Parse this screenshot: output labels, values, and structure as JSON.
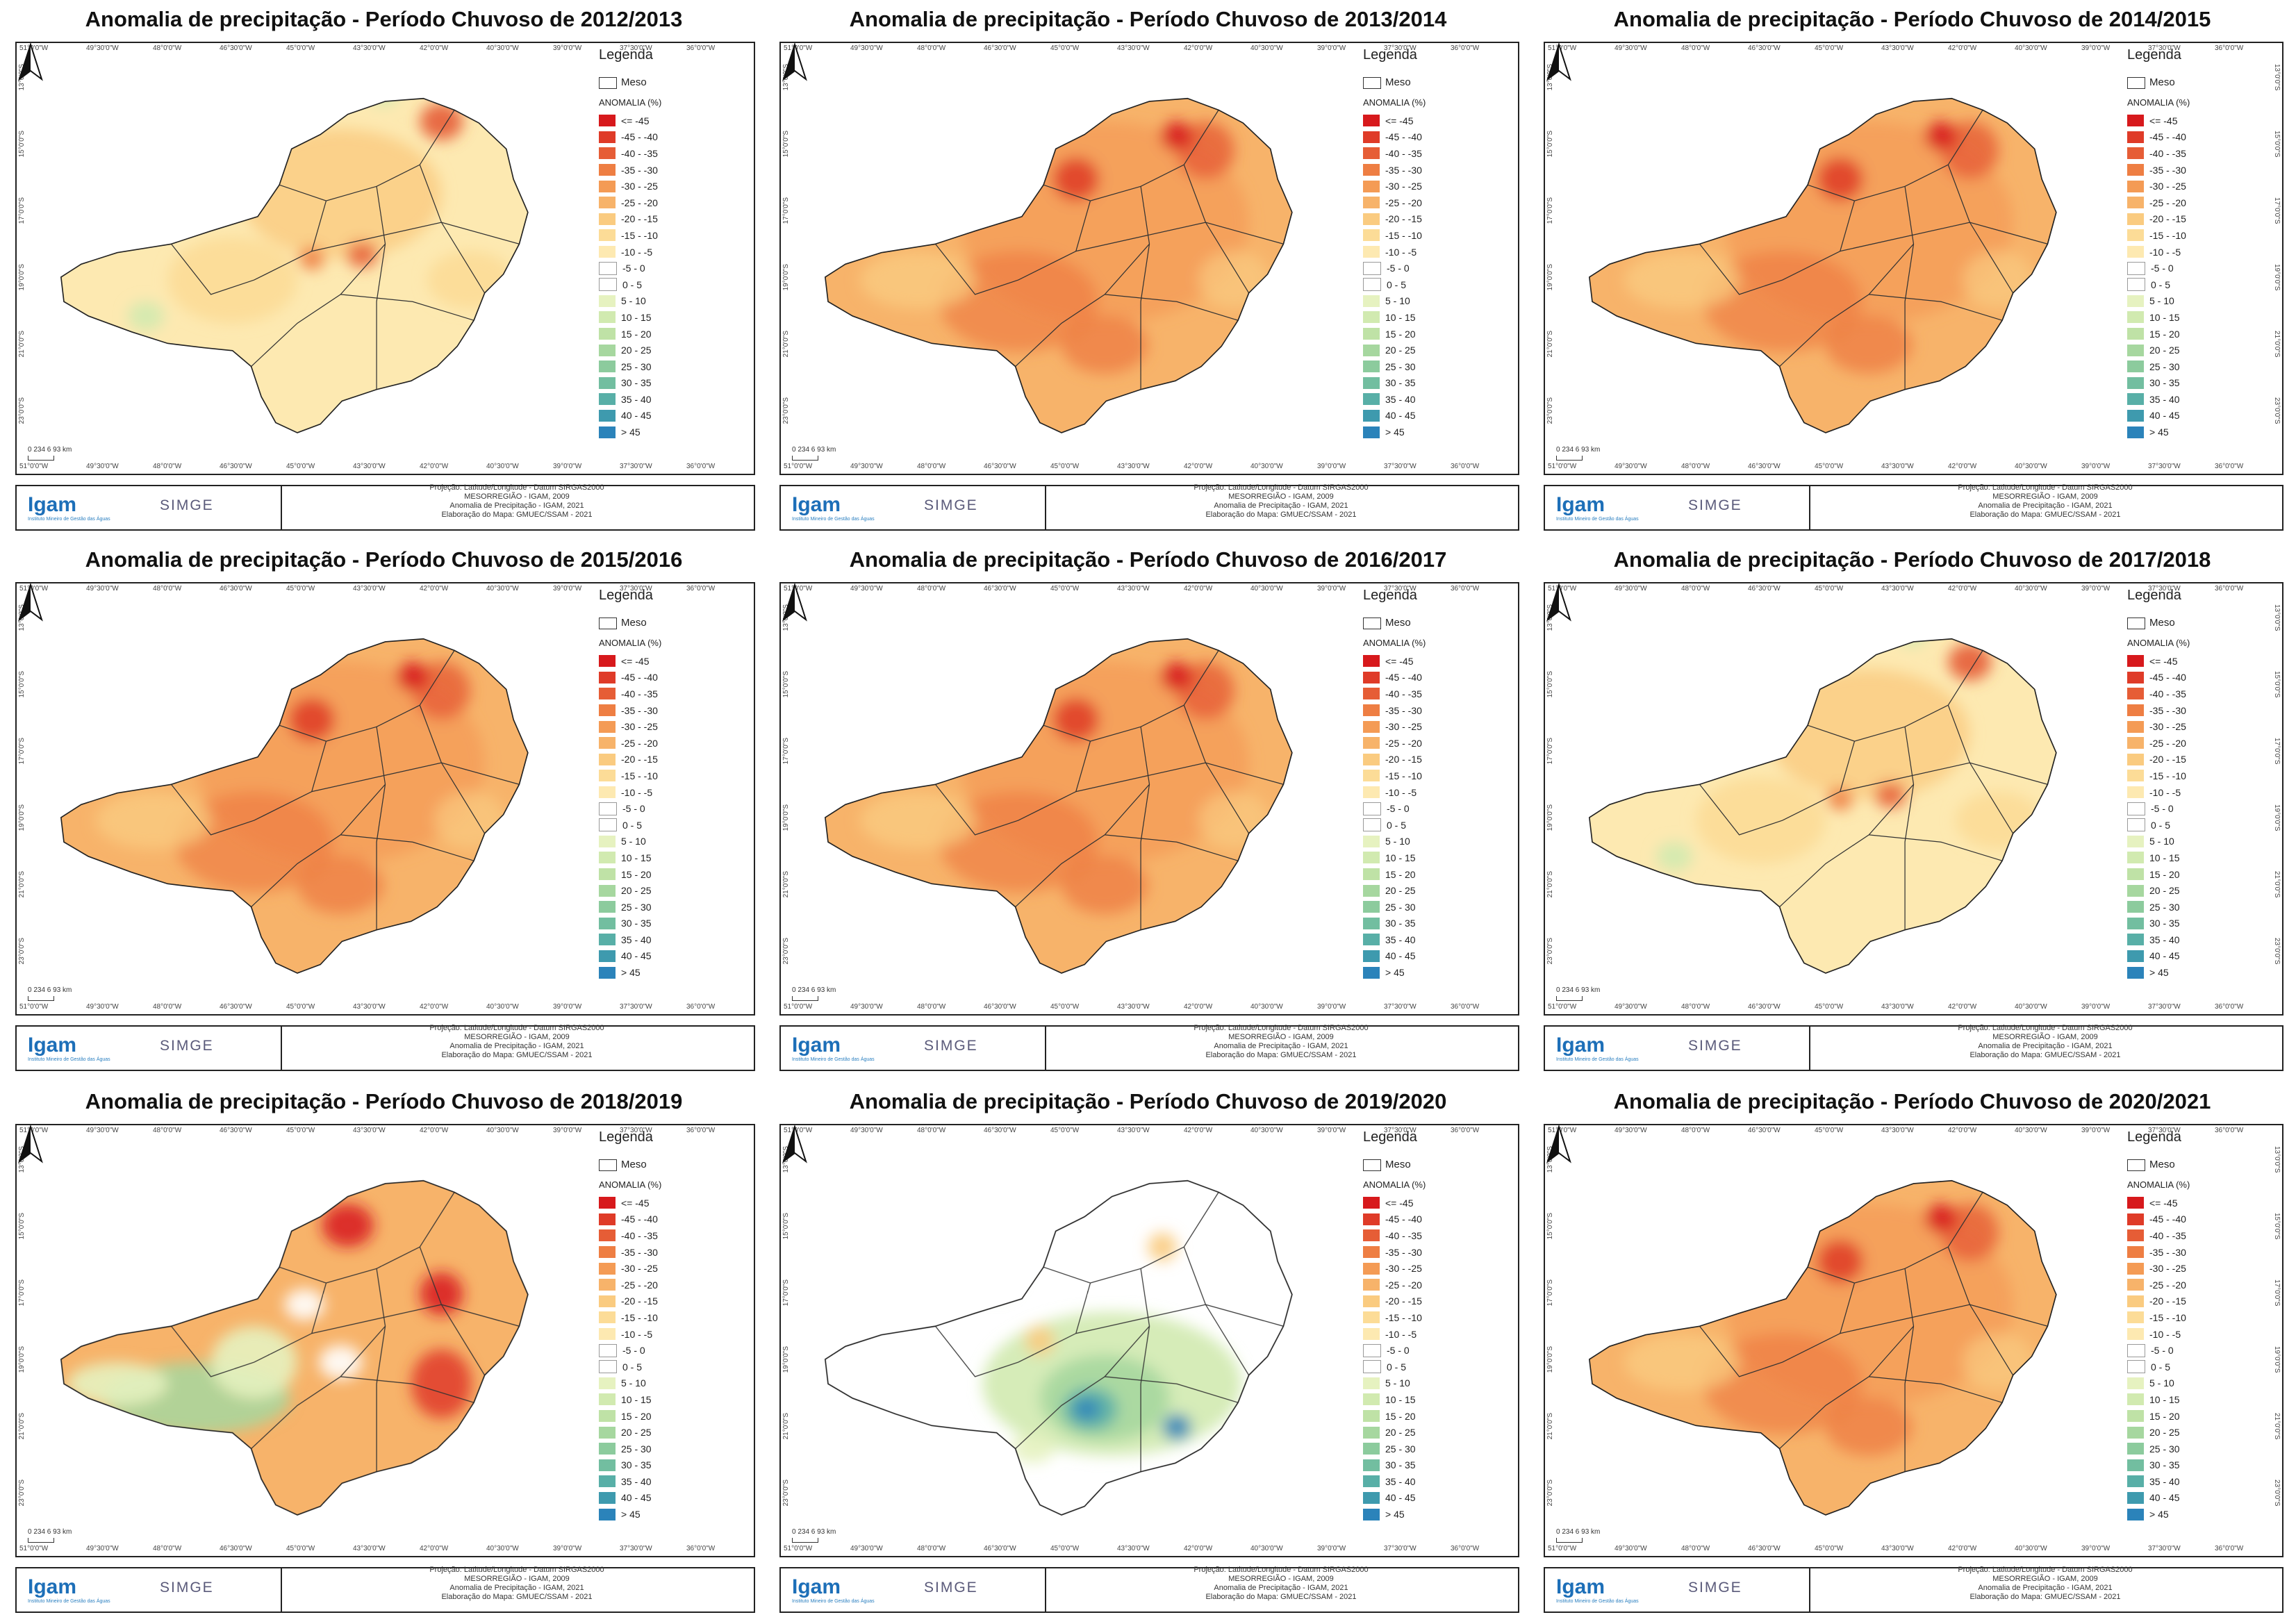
{
  "panels": [
    {
      "title": "Anomalia de precipitação - Período Chuvoso de 2012/2013",
      "theme": "light"
    },
    {
      "title": "Anomalia de precipitação - Período Chuvoso de 2013/2014",
      "theme": "orange"
    },
    {
      "title": "Anomalia de precipitação - Período Chuvoso de 2014/2015",
      "theme": "orange"
    },
    {
      "title": "Anomalia de precipitação - Período Chuvoso de 2015/2016",
      "theme": "orange"
    },
    {
      "title": "Anomalia de precipitação - Período Chuvoso de 2016/2017",
      "theme": "orange"
    },
    {
      "title": "Anomalia de precipitação - Período Chuvoso de 2017/2018",
      "theme": "light"
    },
    {
      "title": "Anomalia de precipitação - Período Chuvoso de 2018/2019",
      "theme": "mixed"
    },
    {
      "title": "Anomalia de precipitação - Período Chuvoso de 2019/2020",
      "theme": "green"
    },
    {
      "title": "Anomalia de precipitação - Período Chuvoso de 2020/2021",
      "theme": "orange"
    }
  ],
  "legend": {
    "title": "Legenda",
    "meso_label": "Meso",
    "anomaly_label": "ANOMALIA (%)",
    "classes": [
      {
        "label": "<= -45",
        "color": "#d7191c"
      },
      {
        "label": "-45 - -40",
        "color": "#df3b28"
      },
      {
        "label": "-40 - -35",
        "color": "#e65d36"
      },
      {
        "label": "-35 - -30",
        "color": "#ee7e43"
      },
      {
        "label": "-30 - -25",
        "color": "#f49b55"
      },
      {
        "label": "-25 - -20",
        "color": "#f7b36a"
      },
      {
        "label": "-20 - -15",
        "color": "#facb80"
      },
      {
        "label": "-15 - -10",
        "color": "#fcdc97"
      },
      {
        "label": "-10 - -5",
        "color": "#fde9b1"
      },
      {
        "label": "-5 - 0",
        "color": "#ffffff"
      },
      {
        "label": "0 - 5",
        "color": "#ffffff"
      },
      {
        "label": "5 - 10",
        "color": "#e6f2c0"
      },
      {
        "label": "10 - 15",
        "color": "#d1eab0"
      },
      {
        "label": "15 - 20",
        "color": "#bfe2a6"
      },
      {
        "label": "20 - 25",
        "color": "#a6d79f"
      },
      {
        "label": "25 - 30",
        "color": "#8ccb9d"
      },
      {
        "label": "30 - 35",
        "color": "#72bea0"
      },
      {
        "label": "35 - 40",
        "color": "#58afa7"
      },
      {
        "label": "40 - 45",
        "color": "#3e9aae"
      },
      {
        "label": "> 45",
        "color": "#2b83ba"
      }
    ]
  },
  "longitudes": [
    "51°0'0\"W",
    "49°30'0\"W",
    "48°0'0\"W",
    "46°30'0\"W",
    "45°0'0\"W",
    "43°30'0\"W",
    "42°0'0\"W",
    "40°30'0\"W",
    "39°0'0\"W",
    "37°30'0\"W",
    "36°0'0\"W"
  ],
  "latitudes": [
    "13°0'0\"S",
    "15°0'0\"S",
    "17°0'0\"S",
    "19°0'0\"S",
    "21°0'0\"S",
    "23°0'0\"S"
  ],
  "scale_label": "0 234 6 93 km",
  "footer": {
    "igam_logo": "Igam",
    "igam_sub": "Instituto Mineiro de Gestão das Águas",
    "simge_logo": "SIMGE",
    "credits_2014": [
      "Projeção: Latitude/Longitude - Datum SIRGAS2000",
      "MESORREGIÃO - IGAM, 2009",
      "Anomalia de Precipitação - IGAM, 2021",
      "Elaboração do Mapa: GMUEC/SSAM - 2021"
    ]
  },
  "colors": {
    "deep": "#d7191c",
    "orange": "#ee7e43",
    "light": "#fcdc97",
    "green": "#a6d79f",
    "blue": "#2b83ba"
  }
}
